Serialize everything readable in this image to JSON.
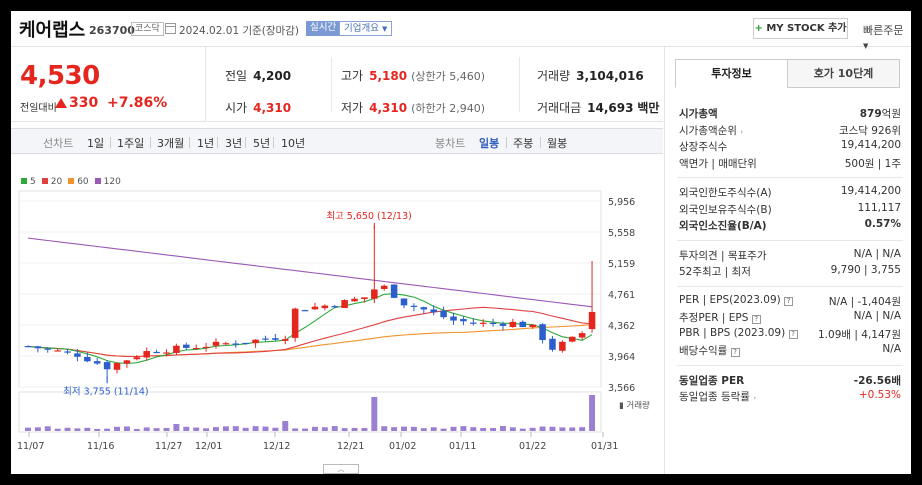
{
  "header": {
    "name": "케어랩스",
    "code": "263700",
    "market": "코스닥",
    "base_date": "2024.02.01 기준(장마감)",
    "realtime": "실시간",
    "company_overview": "기업개요",
    "mystock": "MY STOCK 추가",
    "quick_order": "빠른주문"
  },
  "price": {
    "current": "4,530",
    "change_label": "전일대비",
    "change": "330",
    "change_pct": "+7.86%"
  },
  "quote": {
    "prev_label": "전일",
    "prev": "4,200",
    "high_label": "고가",
    "high": "5,180",
    "upper_limit": "(상한가 5,460)",
    "volume_label": "거래량",
    "volume": "3,104,016",
    "open_label": "시가",
    "open": "4,310",
    "low_label": "저가",
    "low": "4,310",
    "lower_limit": "(하한가 2,940)",
    "amount_label": "거래대금",
    "amount": "14,693",
    "amount_unit": "백만"
  },
  "toolbar": {
    "line_chart": "선차트",
    "periods": [
      "1일",
      "1주일",
      "3개월",
      "1년",
      "3년",
      "5년",
      "10년"
    ],
    "candle_chart": "봉차트",
    "intervals": [
      "일봉",
      "주봉",
      "월봉"
    ],
    "active_interval": "일봉"
  },
  "chart_data": {
    "type": "candlestick",
    "ylim": [
      3566,
      5956
    ],
    "y_ticks": [
      "5,956",
      "5,558",
      "5,159",
      "4,761",
      "4,362",
      "3,964",
      "3,566"
    ],
    "x_tick_labels": [
      "11/07",
      "11/16",
      "11/27",
      "12/01",
      "12/12",
      "12/21",
      "01/02",
      "01/11",
      "01/22",
      "01/31"
    ],
    "legend": [
      {
        "name": "5",
        "color": "#2eaa3c"
      },
      {
        "name": "20",
        "color": "#e04040"
      },
      {
        "name": "60",
        "color": "#f0932b"
      },
      {
        "name": "120",
        "color": "#9b59b6"
      }
    ],
    "high_annotation": "최고 5,650 (12/13)",
    "low_annotation": "최저 3,755 (11/14)",
    "volume_label": "거래량",
    "up_color": "#e5261f",
    "down_color": "#2c5fcc"
  },
  "info": {
    "tab_invest": "투자정보",
    "tab_quote10": "호가 10단계",
    "market_cap_label": "시가총액",
    "market_cap": "879",
    "market_cap_unit": "억원",
    "market_cap_rank_label": "시가총액순위",
    "market_cap_rank": "코스닥 926위",
    "shares_label": "상장주식수",
    "shares": "19,414,200",
    "par_label": "액면가 | 매매단위",
    "par": "500원 | 1주",
    "foreign_limit_label": "외국인한도주식수(A)",
    "foreign_limit": "19,414,200",
    "foreign_hold_label": "외국인보유주식수(B)",
    "foreign_hold": "111,117",
    "foreign_ratio_label": "외국인소진율(B/A)",
    "foreign_ratio": "0.57%",
    "opinion_label": "투자의견 | 목표주가",
    "opinion": "N/A | N/A",
    "week52_label": "52주최고 | 최저",
    "week52": "9,790 | 3,755",
    "per_label": "PER | EPS(2023.09)",
    "per_val": "N/A",
    "eps_val": "-1,404원",
    "est_per_label": "추정PER | EPS",
    "est_per_val": "N/A",
    "est_eps_val": "N/A",
    "pbr_label": "PBR | BPS (2023.09)",
    "pbr_val": "1.09배",
    "bps_val": "4,147원",
    "dividend_label": "배당수익률",
    "dividend": "N/A",
    "sector_per_label": "동일업종 PER",
    "sector_per": "-26.56배",
    "sector_change_label": "동일업종 등락률",
    "sector_change": "+0.53%"
  }
}
